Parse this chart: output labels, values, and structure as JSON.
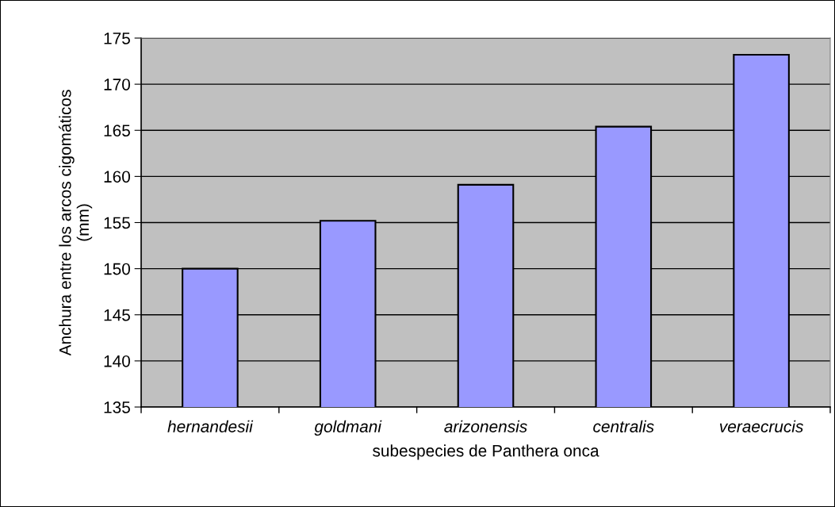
{
  "chart_data": {
    "type": "bar",
    "xlabel": "subespecies de Panthera onca",
    "ylabel": "Anchura entre los arcos cigomáticos\n(mm)",
    "categories": [
      "hernandesii",
      "goldmani",
      "arizonensis",
      "centralis",
      "veraecrucis"
    ],
    "values": [
      150.0,
      155.2,
      159.1,
      165.4,
      173.2
    ],
    "color": "#9999ff",
    "ylim": [
      135,
      175
    ],
    "yticks": [
      135,
      140,
      145,
      150,
      155,
      160,
      165,
      170,
      175
    ],
    "grid": "y",
    "legend": false
  }
}
